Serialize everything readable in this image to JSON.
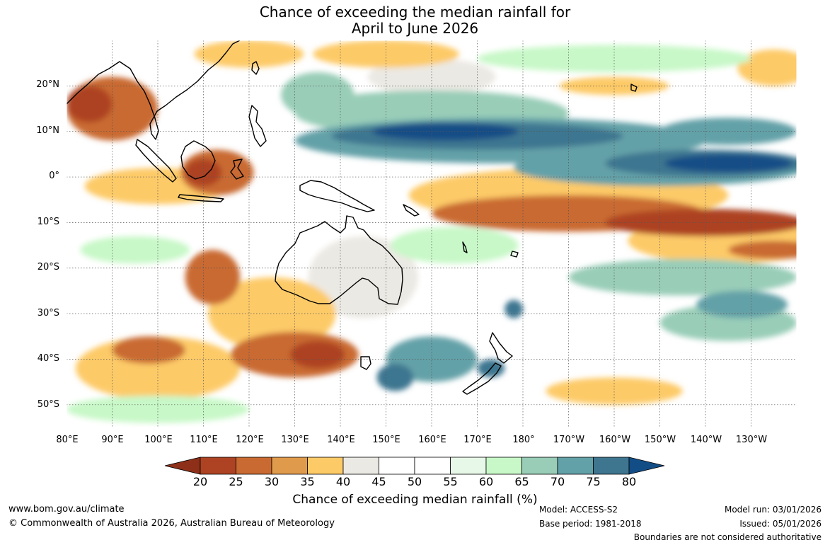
{
  "title": {
    "line1": "Chance of exceeding the median rainfall for",
    "line2": "April to June 2026"
  },
  "map": {
    "latitude_labels": [
      "20°N",
      "10°N",
      "0°",
      "10°S",
      "20°S",
      "30°S",
      "40°S",
      "50°S"
    ],
    "longitude_labels": [
      "80°E",
      "90°E",
      "100°E",
      "110°E",
      "120°E",
      "130°E",
      "140°E",
      "150°E",
      "160°E",
      "170°E",
      "180°",
      "170°W",
      "160°W",
      "150°W",
      "140°W",
      "130°W"
    ],
    "extent": {
      "lon_min": 80,
      "lon_max": 240,
      "lat_min": -55,
      "lat_max": 30
    },
    "regions": [
      {
        "category": "20-25",
        "lon": 110,
        "lat": 1,
        "rlon": 4,
        "rlat": 3
      },
      {
        "category": "20-25",
        "lon": 85,
        "lat": 16,
        "rlon": 5,
        "rlat": 4
      },
      {
        "category": "20-25",
        "lon": 220,
        "lat": -10,
        "rlon": 22,
        "rlat": 3
      },
      {
        "category": "20-25",
        "lon": 135,
        "lat": -39,
        "rlon": 6,
        "rlat": 3
      },
      {
        "category": "25-30",
        "lon": 130,
        "lat": -39,
        "rlon": 14,
        "rlat": 5
      },
      {
        "category": "25-30",
        "lon": 190,
        "lat": -8,
        "rlon": 30,
        "rlat": 4
      },
      {
        "category": "25-30",
        "lon": 90,
        "lat": 15,
        "rlon": 10,
        "rlat": 7
      },
      {
        "category": "25-30",
        "lon": 113,
        "lat": 1,
        "rlon": 8,
        "rlat": 5
      },
      {
        "category": "25-30",
        "lon": 112,
        "lat": -22,
        "rlon": 6,
        "rlat": 6
      },
      {
        "category": "25-30",
        "lon": 98,
        "lat": -38,
        "rlon": 8,
        "rlat": 3
      },
      {
        "category": "25-30",
        "lon": 235,
        "lat": -16,
        "rlon": 10,
        "rlat": 2
      },
      {
        "category": "35-40",
        "lon": 100,
        "lat": -2,
        "rlon": 16,
        "rlat": 4
      },
      {
        "category": "35-40",
        "lon": 125,
        "lat": -30,
        "rlon": 14,
        "rlat": 8
      },
      {
        "category": "35-40",
        "lon": 100,
        "lat": -42,
        "rlon": 18,
        "rlat": 7
      },
      {
        "category": "35-40",
        "lon": 190,
        "lat": -4,
        "rlon": 35,
        "rlat": 6
      },
      {
        "category": "35-40",
        "lon": 225,
        "lat": -14,
        "rlon": 22,
        "rlat": 5
      },
      {
        "category": "35-40",
        "lon": 120,
        "lat": 27,
        "rlon": 12,
        "rlat": 3
      },
      {
        "category": "35-40",
        "lon": 150,
        "lat": 27,
        "rlon": 16,
        "rlat": 3
      },
      {
        "category": "35-40",
        "lon": 200,
        "lat": 20,
        "rlon": 12,
        "rlat": 2
      },
      {
        "category": "35-40",
        "lon": 235,
        "lat": 24,
        "rlon": 8,
        "rlat": 4
      },
      {
        "category": "35-40",
        "lon": 200,
        "lat": -47,
        "rlon": 15,
        "rlat": 3
      },
      {
        "category": "40-45",
        "lon": 145,
        "lat": -22,
        "rlon": 12,
        "rlat": 9
      },
      {
        "category": "40-45",
        "lon": 160,
        "lat": 22,
        "rlon": 14,
        "rlat": 4
      },
      {
        "category": "60-65",
        "lon": 95,
        "lat": -16,
        "rlon": 12,
        "rlat": 3
      },
      {
        "category": "60-65",
        "lon": 165,
        "lat": -15,
        "rlon": 14,
        "rlat": 4
      },
      {
        "category": "60-65",
        "lon": 200,
        "lat": 26,
        "rlon": 30,
        "rlat": 3
      },
      {
        "category": "60-65",
        "lon": 100,
        "lat": -51,
        "rlon": 20,
        "rlat": 3
      },
      {
        "category": "65-70",
        "lon": 160,
        "lat": 14,
        "rlon": 30,
        "rlat": 5
      },
      {
        "category": "65-70",
        "lon": 215,
        "lat": -22,
        "rlon": 25,
        "rlat": 4
      },
      {
        "category": "65-70",
        "lon": 135,
        "lat": 18,
        "rlon": 8,
        "rlat": 5
      },
      {
        "category": "65-70",
        "lon": 225,
        "lat": -32,
        "rlon": 15,
        "rlat": 4
      },
      {
        "category": "70-75",
        "lon": 175,
        "lat": 8,
        "rlon": 45,
        "rlat": 5
      },
      {
        "category": "70-75",
        "lon": 210,
        "lat": 2,
        "rlon": 32,
        "rlat": 4
      },
      {
        "category": "70-75",
        "lon": 225,
        "lat": 10,
        "rlon": 15,
        "rlat": 3
      },
      {
        "category": "70-75",
        "lon": 160,
        "lat": -40,
        "rlon": 10,
        "rlat": 5
      },
      {
        "category": "70-75",
        "lon": 228,
        "lat": -28,
        "rlon": 10,
        "rlat": 3
      },
      {
        "category": "75-80",
        "lon": 170,
        "lat": 9,
        "rlon": 32,
        "rlat": 3
      },
      {
        "category": "75-80",
        "lon": 220,
        "lat": 3,
        "rlon": 22,
        "rlat": 3
      },
      {
        "category": "75-80",
        "lon": 152,
        "lat": -44,
        "rlon": 4,
        "rlat": 3
      },
      {
        "category": "75-80",
        "lon": 173,
        "lat": -42,
        "rlon": 3,
        "rlat": 2
      },
      {
        "category": "75-80",
        "lon": 178,
        "lat": -29,
        "rlon": 2,
        "rlat": 2
      },
      {
        "category": ">80",
        "lon": 163,
        "lat": 10,
        "rlon": 16,
        "rlat": 2
      },
      {
        "category": ">80",
        "lon": 225,
        "lat": 3,
        "rlon": 14,
        "rlat": 2
      }
    ]
  },
  "colorbar": {
    "ticks": [
      "20",
      "25",
      "30",
      "35",
      "40",
      "45",
      "50",
      "55",
      "60",
      "65",
      "70",
      "75",
      "80"
    ],
    "colors": [
      "#8e3019",
      "#ad4322",
      "#c96a32",
      "#e09a4b",
      "#fdca68",
      "#ebe9e3",
      "#ffffff",
      "#ffffff",
      "#e8f8e8",
      "#c8f8c8",
      "#99cdb8",
      "#63a1a8",
      "#3e7690",
      "#124d86"
    ],
    "label": "Chance of exceeding median rainfall (%)"
  },
  "footer": {
    "website": "www.bom.gov.au/climate",
    "copyright": "© Commonwealth of Australia 2026, Australian Bureau of Meteorology",
    "model": "Model: ACCESS-S2",
    "base_period": "Base period: 1981-2018",
    "model_run": "Model run: 03/01/2026",
    "issued": "Issued: 05/01/2026",
    "boundaries_note": "Boundaries are not considered authoritative"
  }
}
